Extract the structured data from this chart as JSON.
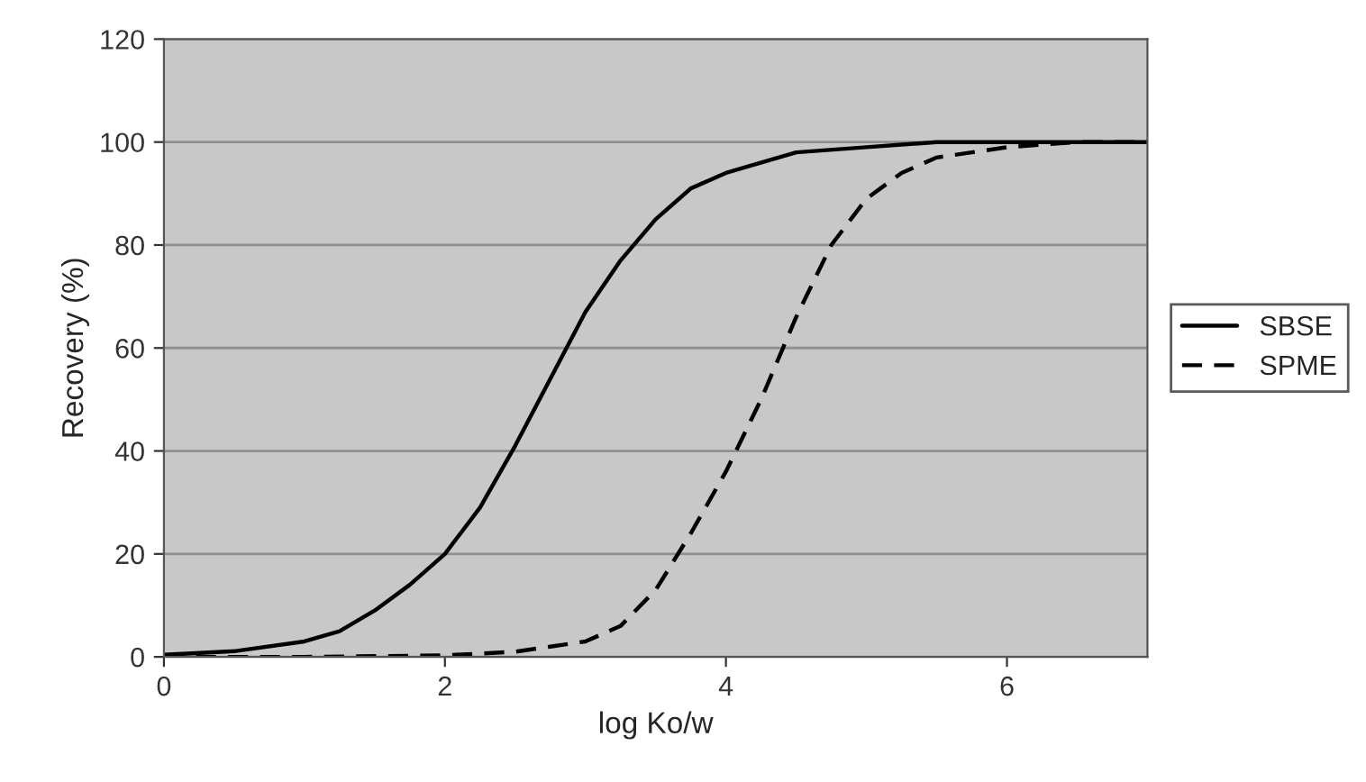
{
  "chart_data": {
    "type": "line",
    "xlabel": "log Ko/w",
    "ylabel": "Recovery (%)",
    "xlim": [
      0,
      7
    ],
    "xticks": [
      0,
      2,
      4,
      6
    ],
    "ylim": [
      0,
      120
    ],
    "yticks": [
      0,
      20,
      40,
      60,
      80,
      100,
      120
    ],
    "grid": "y",
    "legend": "right",
    "marker": "none",
    "series": [
      {
        "name": "SBSE",
        "color": "#000000",
        "line_style": "solid",
        "x": [
          0,
          0.5,
          1,
          1.25,
          1.5,
          1.75,
          2,
          2.25,
          2.5,
          2.75,
          3,
          3.25,
          3.5,
          3.75,
          4,
          4.5,
          5,
          5.5,
          6,
          7
        ],
        "values": [
          0.4,
          1.1,
          3,
          5,
          9,
          14,
          20,
          29,
          41,
          54,
          67,
          77,
          85,
          91,
          94,
          98,
          99,
          100,
          100,
          100
        ]
      },
      {
        "name": "SPME",
        "color": "#000000",
        "line_style": "dashed",
        "x": [
          0,
          1,
          2,
          2.5,
          2.75,
          3,
          3.25,
          3.5,
          3.75,
          4,
          4.25,
          4.5,
          4.75,
          5,
          5.25,
          5.5,
          6,
          6.5,
          7
        ],
        "values": [
          0,
          0,
          0.3,
          1,
          2,
          3,
          6,
          13,
          24,
          36,
          50,
          66,
          80,
          89,
          94,
          97,
          99,
          100,
          100
        ]
      }
    ]
  }
}
